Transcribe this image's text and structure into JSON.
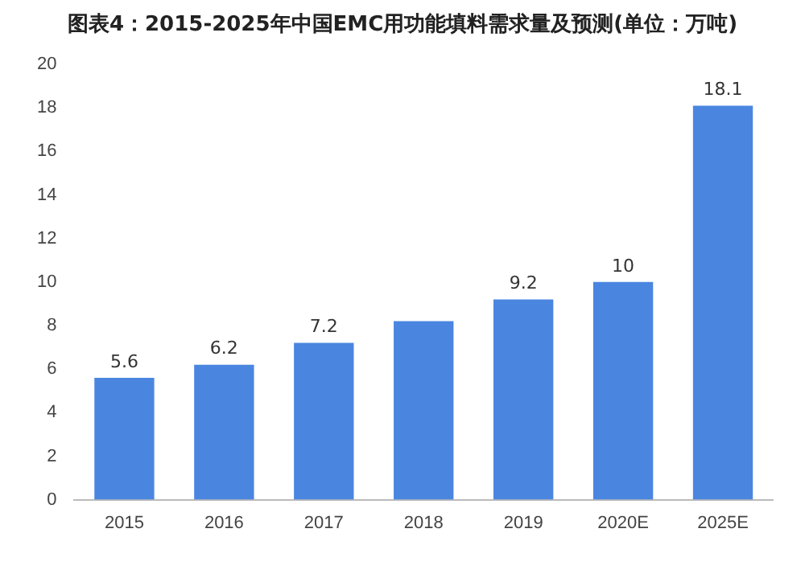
{
  "chart_data": {
    "type": "bar",
    "title": "图表4：2015-2025年中国EMC用功能填料需求量及预测(单位：万吨)",
    "categories": [
      "2015",
      "2016",
      "2017",
      "2018",
      "2019",
      "2020E",
      "2025E"
    ],
    "values": [
      5.6,
      6.2,
      7.2,
      8.2,
      9.2,
      10,
      18.1
    ],
    "value_labels": [
      "5.6",
      "6.2",
      "7.2",
      null,
      "9.2",
      "10",
      "18.1"
    ],
    "color": "#4a86e0",
    "ylim": [
      0,
      20
    ],
    "yticks": [
      0,
      2,
      4,
      6,
      8,
      10,
      12,
      14,
      16,
      18,
      20
    ],
    "grid": false,
    "legend": false
  }
}
